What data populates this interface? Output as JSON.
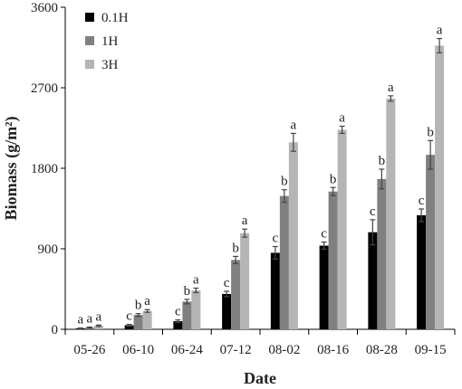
{
  "chart_data": {
    "type": "bar",
    "xlabel": "Date",
    "ylabel": "Biomass (g/m²)",
    "ylim": [
      0,
      3600
    ],
    "yticks": [
      0,
      900,
      1800,
      2700,
      3600
    ],
    "grid": false,
    "legend_position": "top-left",
    "categories": [
      "05-26",
      "06-10",
      "06-24",
      "07-12",
      "08-02",
      "08-16",
      "08-28",
      "09-15"
    ],
    "series": [
      {
        "name": "0.1H",
        "color": "#000000",
        "values": [
          10,
          45,
          90,
          395,
          855,
          935,
          1085,
          1275
        ],
        "errors": [
          5,
          10,
          15,
          30,
          70,
          40,
          140,
          70
        ],
        "labels": [
          "a",
          "c",
          "c",
          "c",
          "c",
          "c",
          "c",
          "c"
        ]
      },
      {
        "name": "1H",
        "color": "#808080",
        "values": [
          20,
          160,
          310,
          775,
          1490,
          1540,
          1680,
          1950
        ],
        "errors": [
          5,
          15,
          25,
          40,
          70,
          45,
          110,
          160
        ],
        "labels": [
          "a",
          "b",
          "b",
          "b",
          "b",
          "b",
          "b",
          "b"
        ]
      },
      {
        "name": "3H",
        "color": "#b5b5b5",
        "values": [
          40,
          205,
          435,
          1075,
          2090,
          2230,
          2580,
          3170
        ],
        "errors": [
          8,
          15,
          25,
          45,
          100,
          40,
          30,
          80
        ],
        "labels": [
          "a",
          "a",
          "a",
          "a",
          "a",
          "a",
          "a",
          "a"
        ]
      }
    ]
  }
}
